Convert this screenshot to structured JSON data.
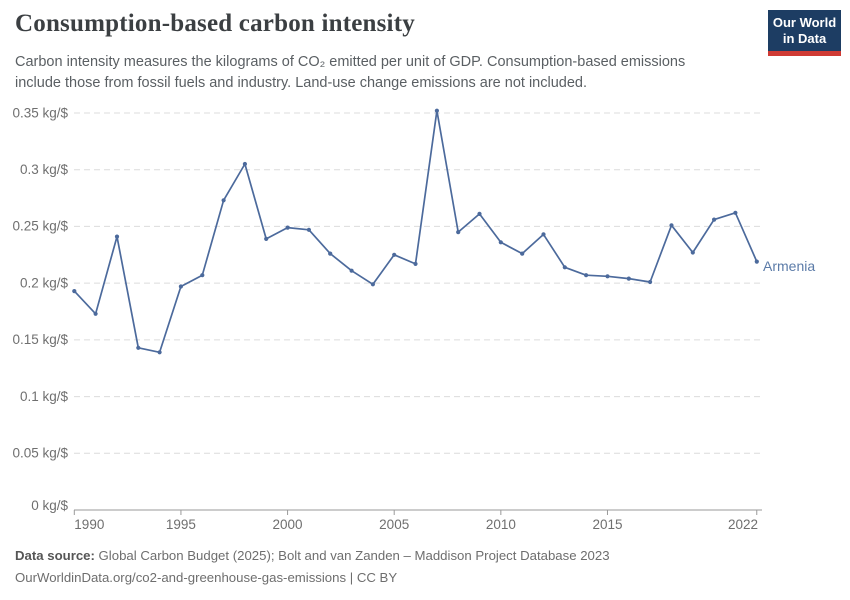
{
  "header": {
    "title": "Consumption-based carbon intensity",
    "subtitle": "Carbon intensity measures the kilograms of CO₂ emitted per unit of GDP. Consumption-based emissions include those from fossil fuels and industry. Land-use change emissions are not included.",
    "logo": {
      "line1": "Our World",
      "line2": "in Data"
    }
  },
  "chart_data": {
    "type": "line",
    "title": "Consumption-based carbon intensity",
    "ylabel_unit": "kg/$",
    "xlim": [
      1990,
      2022
    ],
    "ylim": [
      0,
      0.35
    ],
    "grid": "horizontal dashed",
    "legend_position": "end-of-line label",
    "x_ticks": [
      1990,
      1995,
      2000,
      2005,
      2010,
      2015,
      2022
    ],
    "y_ticks": [
      {
        "value": 0,
        "label": "0 kg/$"
      },
      {
        "value": 0.05,
        "label": "0.05 kg/$"
      },
      {
        "value": 0.1,
        "label": "0.1 kg/$"
      },
      {
        "value": 0.15,
        "label": "0.15 kg/$"
      },
      {
        "value": 0.2,
        "label": "0.2 kg/$"
      },
      {
        "value": 0.25,
        "label": "0.25 kg/$"
      },
      {
        "value": 0.3,
        "label": "0.3 kg/$"
      },
      {
        "value": 0.35,
        "label": "0.35 kg/$"
      }
    ],
    "series": [
      {
        "name": "Armenia",
        "color": "#4C6A9C",
        "x": [
          1990,
          1991,
          1992,
          1993,
          1994,
          1995,
          1996,
          1997,
          1998,
          1999,
          2000,
          2001,
          2002,
          2003,
          2004,
          2005,
          2006,
          2007,
          2008,
          2009,
          2010,
          2011,
          2012,
          2013,
          2014,
          2015,
          2016,
          2017,
          2018,
          2019,
          2020,
          2021,
          2022
        ],
        "values": [
          0.193,
          0.173,
          0.241,
          0.143,
          0.139,
          0.197,
          0.207,
          0.273,
          0.305,
          0.239,
          0.249,
          0.247,
          0.226,
          0.211,
          0.199,
          0.225,
          0.217,
          0.352,
          0.245,
          0.261,
          0.236,
          0.226,
          0.243,
          0.214,
          0.207,
          0.206,
          0.204,
          0.201,
          0.251,
          0.227,
          0.256,
          0.262,
          0.219
        ]
      }
    ]
  },
  "footer": {
    "source_label": "Data source:",
    "source_text": " Global Carbon Budget (2025); Bolt and van Zanden – Maddison Project Database 2023",
    "url_line": "OurWorldinData.org/co2-and-greenhouse-gas-emissions | CC BY"
  },
  "colors": {
    "series_line": "#4C6A9C",
    "series_label": "#5b7ba8",
    "gridline": "#dcdcdc",
    "axis": "#9a9a9a",
    "logo_navy": "#1d3d63",
    "logo_red": "#cf3a34"
  }
}
